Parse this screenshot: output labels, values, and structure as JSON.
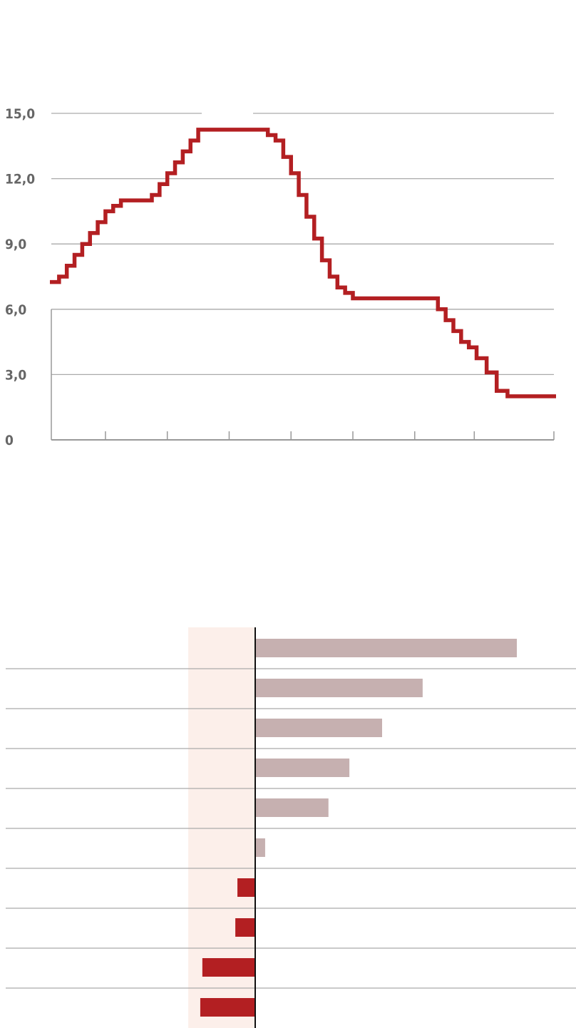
{
  "chart_data": [
    {
      "type": "line",
      "step": true,
      "title": "",
      "xlabel": "",
      "ylabel": "",
      "ylim": [
        0,
        15
      ],
      "xlim": [
        0,
        65
      ],
      "yticks": [
        0,
        3,
        6,
        9,
        12,
        15
      ],
      "ytick_labels": [
        "0",
        "3,0",
        "6,0",
        "9,0",
        "12,0",
        "15,0"
      ],
      "xticks": [
        7,
        15,
        23,
        31,
        39,
        47,
        54.7,
        65
      ],
      "grid": true,
      "color": "#b31f22",
      "steps": [
        [
          0,
          7.25
        ],
        [
          1,
          7.5
        ],
        [
          2,
          8.0
        ],
        [
          3,
          8.5
        ],
        [
          4,
          9.0
        ],
        [
          5,
          9.5
        ],
        [
          6,
          10.0
        ],
        [
          7,
          10.5
        ],
        [
          8,
          10.75
        ],
        [
          9,
          11.0
        ],
        [
          13,
          11.25
        ],
        [
          14,
          11.75
        ],
        [
          15,
          12.25
        ],
        [
          16,
          12.75
        ],
        [
          17,
          13.25
        ],
        [
          18,
          13.75
        ],
        [
          19,
          14.25
        ],
        [
          28,
          14.0
        ],
        [
          29,
          13.75
        ],
        [
          30,
          13.0
        ],
        [
          31,
          12.25
        ],
        [
          32,
          11.25
        ],
        [
          33,
          10.25
        ],
        [
          34,
          9.25
        ],
        [
          35,
          8.25
        ],
        [
          36,
          7.5
        ],
        [
          37,
          7.0
        ],
        [
          38,
          6.75
        ],
        [
          39,
          6.5
        ],
        [
          50,
          6.0
        ],
        [
          51,
          5.5
        ],
        [
          52,
          5.0
        ],
        [
          53,
          4.5
        ],
        [
          54,
          4.25
        ],
        [
          55,
          3.75
        ],
        [
          56.3,
          3.1
        ],
        [
          57.6,
          2.25
        ],
        [
          59,
          2.0
        ],
        [
          65,
          2.0
        ]
      ]
    },
    {
      "type": "bar",
      "orientation": "horizontal",
      "title": "",
      "categories": [
        "",
        "",
        "",
        "",
        "",
        "",
        "",
        "",
        "",
        ""
      ],
      "values": [
        100,
        64,
        48.5,
        36,
        28,
        3.8,
        -6.8,
        -7.6,
        -20.2,
        -21
      ],
      "xlim": [
        -25.6,
        122
      ],
      "shaded_range": [
        -25.6,
        0
      ],
      "positive_color": "#c6b0b0",
      "negative_color": "#b31f22",
      "shade_color": "#fcefea"
    }
  ]
}
